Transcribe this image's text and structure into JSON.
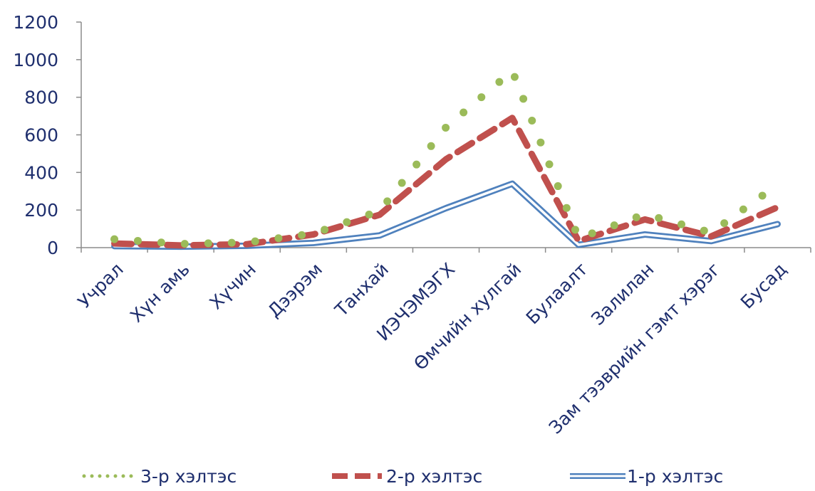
{
  "chart_data": {
    "type": "line",
    "categories": [
      "Учрал",
      "Хүн амь",
      "Хүчин",
      "Дээрэм",
      "Танхай",
      "ИЭЧЭМЭГХ",
      "Өмчийн хулгай",
      "Булаалт",
      "Залилан",
      "Зам тээврийн гэмт хэрэг",
      "Бусад"
    ],
    "series": [
      {
        "name": "3-р хэлтэс",
        "values": [
          45,
          20,
          28,
          75,
          195,
          640,
          940,
          50,
          178,
          80,
          335
        ],
        "color": "#9bbb59",
        "style": "dotted"
      },
      {
        "name": "2-р хэлтэс",
        "values": [
          22,
          12,
          18,
          70,
          175,
          470,
          690,
          35,
          150,
          60,
          215
        ],
        "color": "#c0504d",
        "style": "dashed"
      },
      {
        "name": "1-р хэлтэс",
        "values": [
          8,
          5,
          10,
          25,
          65,
          210,
          340,
          15,
          70,
          35,
          125
        ],
        "color": "#4f81bd",
        "style": "double"
      }
    ],
    "ylim": [
      0,
      1200
    ],
    "yticks": [
      0,
      200,
      400,
      600,
      800,
      1000,
      1200
    ],
    "grid": false,
    "legend": "bottom"
  }
}
